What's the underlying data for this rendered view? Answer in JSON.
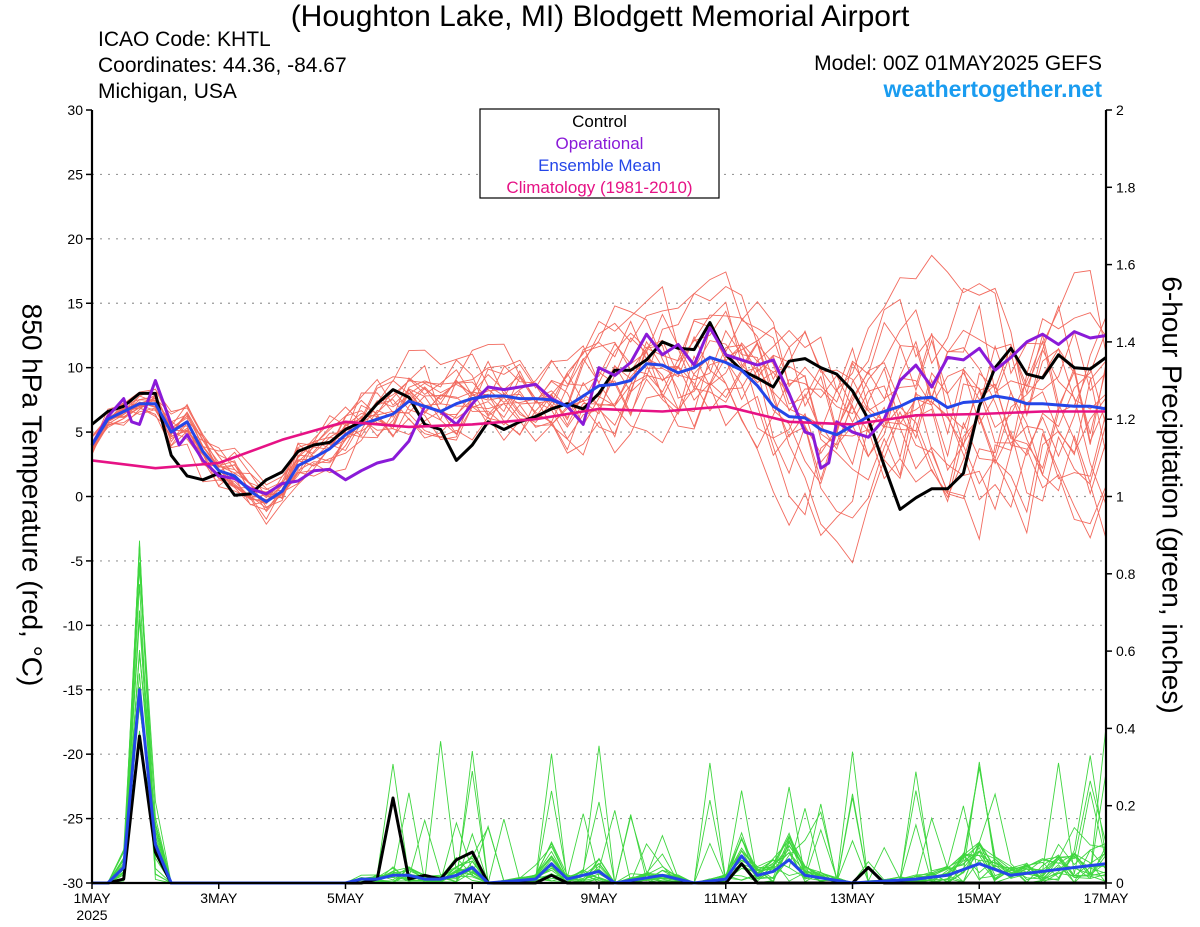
{
  "header": {
    "title": "(Houghton Lake, MI) Blodgett Memorial Airport",
    "icao": "ICAO Code: KHTL",
    "coords": "Coordinates: 44.36, -84.67",
    "region": "Michigan, USA",
    "model": "Model: 00Z 01MAY2025 GEFS",
    "site": "weathertogether.net"
  },
  "colors": {
    "control": "#000000",
    "operational": "#8a1ad8",
    "mean": "#2446e8",
    "climatology": "#e61285",
    "members_temp": "#f26a5e",
    "members_precip": "#3fd63f",
    "grid": "#999999"
  },
  "chart_data": {
    "type": "line",
    "ylabel_left": "850 hPa Temperature (red, °C)",
    "ylabel_right": "6-hour Precipitation (green, inches)",
    "ylim_left": [
      -30,
      30
    ],
    "ylim_right": [
      0,
      2
    ],
    "yticks_left": [
      30,
      25,
      20,
      15,
      10,
      5,
      0,
      -5,
      -10,
      -15,
      -20,
      -25,
      -30
    ],
    "yticks_right": [
      2,
      1.8,
      1.6,
      1.4,
      1.2,
      1,
      0.8,
      0.6,
      0.4,
      0.2,
      0
    ],
    "xlim_days": [
      0,
      16
    ],
    "xticks": [
      {
        "day": 0,
        "label": "1MAY",
        "sub": "2025"
      },
      {
        "day": 2,
        "label": "3MAY"
      },
      {
        "day": 4,
        "label": "5MAY"
      },
      {
        "day": 6,
        "label": "7MAY"
      },
      {
        "day": 8,
        "label": "9MAY"
      },
      {
        "day": 10,
        "label": "11MAY"
      },
      {
        "day": 12,
        "label": "13MAY"
      },
      {
        "day": 14,
        "label": "15MAY"
      },
      {
        "day": 16,
        "label": "17MAY"
      }
    ],
    "grid": true,
    "legend_placement": "top-center",
    "legend": [
      "Control",
      "Operational",
      "Ensemble Mean",
      "Climatology (1981-2010)"
    ],
    "temperature_series": [
      {
        "name": "Control",
        "key": "control",
        "points": [
          [
            0,
            5.6
          ],
          [
            0.25,
            6.6
          ],
          [
            0.5,
            7
          ],
          [
            0.75,
            8
          ],
          [
            1,
            8
          ],
          [
            1.125,
            5.5
          ],
          [
            1.25,
            3.2
          ],
          [
            1.5,
            1.6
          ],
          [
            1.75,
            1.3
          ],
          [
            2,
            1.8
          ],
          [
            2.25,
            0.1
          ],
          [
            2.5,
            0.2
          ],
          [
            2.75,
            1.3
          ],
          [
            3,
            1.9
          ],
          [
            3.25,
            3.5
          ],
          [
            3.5,
            4
          ],
          [
            3.75,
            4.2
          ],
          [
            4,
            5.2
          ],
          [
            4.25,
            5.8
          ],
          [
            4.5,
            7.2
          ],
          [
            4.75,
            8.3
          ],
          [
            5,
            7.7
          ],
          [
            5.25,
            5.6
          ],
          [
            5.5,
            5.2
          ],
          [
            5.75,
            2.8
          ],
          [
            6,
            4
          ],
          [
            6.25,
            5.8
          ],
          [
            6.5,
            5.2
          ],
          [
            6.75,
            5.8
          ],
          [
            7,
            6.2
          ],
          [
            7.25,
            6.8
          ],
          [
            7.5,
            7.2
          ],
          [
            7.75,
            6.8
          ],
          [
            8,
            8
          ],
          [
            8.25,
            9.8
          ],
          [
            8.5,
            9.8
          ],
          [
            8.75,
            10.6
          ],
          [
            9,
            12
          ],
          [
            9.25,
            11.5
          ],
          [
            9.5,
            11.4
          ],
          [
            9.75,
            13.5
          ],
          [
            10,
            11
          ],
          [
            10.25,
            9.8
          ],
          [
            10.5,
            9.2
          ],
          [
            10.75,
            8.5
          ],
          [
            11,
            10.5
          ],
          [
            11.25,
            10.7
          ],
          [
            11.5,
            10
          ],
          [
            11.75,
            9.5
          ],
          [
            12,
            8.2
          ],
          [
            12.25,
            6
          ],
          [
            12.5,
            2.4
          ],
          [
            12.75,
            -1
          ],
          [
            13,
            -0.1
          ],
          [
            13.25,
            0.6
          ],
          [
            13.5,
            0.6
          ],
          [
            13.75,
            1.8
          ],
          [
            14,
            7
          ],
          [
            14.25,
            10
          ],
          [
            14.5,
            11.5
          ],
          [
            14.75,
            9.5
          ],
          [
            15,
            9.2
          ],
          [
            15.25,
            11
          ],
          [
            15.5,
            10
          ],
          [
            15.75,
            9.9
          ],
          [
            16,
            10.8
          ]
        ]
      },
      {
        "name": "Operational",
        "key": "operational",
        "points": [
          [
            0,
            4
          ],
          [
            0.25,
            6.2
          ],
          [
            0.5,
            7.6
          ],
          [
            0.625,
            5.8
          ],
          [
            0.75,
            5.6
          ],
          [
            1,
            9
          ],
          [
            1.25,
            5.6
          ],
          [
            1.375,
            4
          ],
          [
            1.5,
            4.8
          ],
          [
            1.75,
            2.8
          ],
          [
            2,
            1.6
          ],
          [
            2.25,
            1.4
          ],
          [
            2.5,
            0.6
          ],
          [
            2.75,
            0.2
          ],
          [
            3,
            1
          ],
          [
            3.25,
            1.2
          ],
          [
            3.5,
            2
          ],
          [
            3.75,
            2.1
          ],
          [
            4,
            1.3
          ],
          [
            4.25,
            2
          ],
          [
            4.5,
            2.6
          ],
          [
            4.75,
            2.9
          ],
          [
            5,
            4.3
          ],
          [
            5.25,
            7
          ],
          [
            5.5,
            6.6
          ],
          [
            5.75,
            5.6
          ],
          [
            6,
            7.2
          ],
          [
            6.25,
            8.5
          ],
          [
            6.5,
            8.3
          ],
          [
            6.75,
            8.5
          ],
          [
            7,
            8.7
          ],
          [
            7.25,
            7.6
          ],
          [
            7.5,
            7
          ],
          [
            7.75,
            5.6
          ],
          [
            8,
            10
          ],
          [
            8.25,
            9.4
          ],
          [
            8.5,
            10.4
          ],
          [
            8.75,
            12.6
          ],
          [
            9,
            11
          ],
          [
            9.25,
            11.8
          ],
          [
            9.5,
            10.2
          ],
          [
            9.75,
            13.1
          ],
          [
            10,
            11
          ],
          [
            10.25,
            10.6
          ],
          [
            10.5,
            10.2
          ],
          [
            10.75,
            10.6
          ],
          [
            11,
            8
          ],
          [
            11.25,
            5
          ],
          [
            11.375,
            4.8
          ],
          [
            11.5,
            2.2
          ],
          [
            11.625,
            2.6
          ],
          [
            11.75,
            5.8
          ],
          [
            12,
            5
          ],
          [
            12.25,
            4.6
          ],
          [
            12.5,
            6
          ],
          [
            12.75,
            9
          ],
          [
            13,
            10.2
          ],
          [
            13.25,
            8.5
          ],
          [
            13.5,
            10.8
          ],
          [
            13.75,
            10.6
          ],
          [
            14,
            11.5
          ],
          [
            14.25,
            9.8
          ],
          [
            14.5,
            10.8
          ],
          [
            14.75,
            12
          ],
          [
            15,
            12.6
          ],
          [
            15.25,
            11.8
          ],
          [
            15.5,
            12.8
          ],
          [
            15.75,
            12.3
          ],
          [
            16,
            12.5
          ]
        ]
      },
      {
        "name": "Ensemble Mean",
        "key": "mean",
        "points": [
          [
            0,
            4
          ],
          [
            0.25,
            6
          ],
          [
            0.5,
            6.6
          ],
          [
            0.75,
            7.2
          ],
          [
            1,
            7.2
          ],
          [
            1.25,
            5
          ],
          [
            1.5,
            5.8
          ],
          [
            1.75,
            3.5
          ],
          [
            2,
            2
          ],
          [
            2.25,
            1.6
          ],
          [
            2.5,
            0.4
          ],
          [
            2.75,
            -0.4
          ],
          [
            3,
            0.4
          ],
          [
            3.25,
            2.4
          ],
          [
            3.5,
            3
          ],
          [
            3.75,
            3.7
          ],
          [
            4,
            4.8
          ],
          [
            4.25,
            5.6
          ],
          [
            4.5,
            6
          ],
          [
            4.75,
            6.4
          ],
          [
            5,
            7.4
          ],
          [
            5.25,
            7
          ],
          [
            5.5,
            6.6
          ],
          [
            5.75,
            7.2
          ],
          [
            6,
            7.6
          ],
          [
            6.25,
            7.8
          ],
          [
            6.5,
            7.8
          ],
          [
            6.75,
            7.6
          ],
          [
            7,
            7.6
          ],
          [
            7.25,
            7.5
          ],
          [
            7.5,
            7
          ],
          [
            7.75,
            7.8
          ],
          [
            8,
            8.6
          ],
          [
            8.25,
            8.7
          ],
          [
            8.5,
            9
          ],
          [
            8.75,
            10.3
          ],
          [
            9,
            10.2
          ],
          [
            9.25,
            9.6
          ],
          [
            9.5,
            10
          ],
          [
            9.75,
            10.8
          ],
          [
            10,
            10.4
          ],
          [
            10.25,
            9.8
          ],
          [
            10.5,
            8.6
          ],
          [
            10.75,
            7
          ],
          [
            11,
            6.2
          ],
          [
            11.25,
            6.1
          ],
          [
            11.5,
            5.2
          ],
          [
            11.75,
            4.8
          ],
          [
            12,
            5.5
          ],
          [
            12.25,
            6.2
          ],
          [
            12.5,
            6.6
          ],
          [
            12.75,
            7
          ],
          [
            13,
            7.6
          ],
          [
            13.25,
            7.7
          ],
          [
            13.5,
            6.9
          ],
          [
            13.75,
            7.3
          ],
          [
            14,
            7.4
          ],
          [
            14.25,
            7.8
          ],
          [
            14.5,
            7.6
          ],
          [
            14.75,
            7.2
          ],
          [
            15,
            7.2
          ],
          [
            15.25,
            7.1
          ],
          [
            15.5,
            7
          ],
          [
            15.75,
            7
          ],
          [
            16,
            6.8
          ]
        ]
      },
      {
        "name": "Climatology (1981-2010)",
        "key": "climatology",
        "points": [
          [
            0,
            2.8
          ],
          [
            1,
            2.2
          ],
          [
            2,
            2.6
          ],
          [
            3,
            4.4
          ],
          [
            4,
            5.8
          ],
          [
            5,
            5.4
          ],
          [
            6,
            5.6
          ],
          [
            7,
            6
          ],
          [
            8,
            6.8
          ],
          [
            9,
            6.6
          ],
          [
            10,
            7
          ],
          [
            11,
            5.8
          ],
          [
            12,
            5.6
          ],
          [
            13,
            6.3
          ],
          [
            14,
            6.4
          ],
          [
            15,
            6.6
          ],
          [
            16,
            6.6
          ]
        ]
      }
    ],
    "precipitation_series": [
      {
        "name": "Control",
        "key": "control",
        "points": [
          [
            0,
            0
          ],
          [
            0.25,
            0
          ],
          [
            0.5,
            0.01
          ],
          [
            0.75,
            0.38
          ],
          [
            1,
            0.08
          ],
          [
            1.25,
            0
          ],
          [
            2,
            0
          ],
          [
            4,
            0
          ],
          [
            4.25,
            0
          ],
          [
            4.5,
            0.01
          ],
          [
            4.75,
            0.22
          ],
          [
            5,
            0.01
          ],
          [
            5.25,
            0.02
          ],
          [
            5.5,
            0.01
          ],
          [
            5.75,
            0.06
          ],
          [
            6,
            0.08
          ],
          [
            6.25,
            0
          ],
          [
            7,
            0
          ],
          [
            7.25,
            0.02
          ],
          [
            7.5,
            0
          ],
          [
            10,
            0
          ],
          [
            10.25,
            0.05
          ],
          [
            10.5,
            0
          ],
          [
            12,
            0
          ],
          [
            12.25,
            0.04
          ],
          [
            12.5,
            0
          ],
          [
            16,
            0
          ]
        ]
      },
      {
        "name": "Ensemble Mean",
        "key": "mean",
        "points": [
          [
            0,
            0
          ],
          [
            0.25,
            0
          ],
          [
            0.5,
            0.04
          ],
          [
            0.75,
            0.5
          ],
          [
            1,
            0.1
          ],
          [
            1.25,
            0
          ],
          [
            2,
            0
          ],
          [
            4,
            0
          ],
          [
            4.25,
            0.01
          ],
          [
            4.5,
            0.01
          ],
          [
            4.75,
            0.02
          ],
          [
            5,
            0.02
          ],
          [
            5.25,
            0.01
          ],
          [
            5.5,
            0.01
          ],
          [
            5.75,
            0.02
          ],
          [
            6,
            0.04
          ],
          [
            6.25,
            0
          ],
          [
            7,
            0.01
          ],
          [
            7.25,
            0.05
          ],
          [
            7.5,
            0.01
          ],
          [
            8,
            0.03
          ],
          [
            8.25,
            0
          ],
          [
            9,
            0.02
          ],
          [
            9.5,
            0
          ],
          [
            10,
            0.01
          ],
          [
            10.25,
            0.07
          ],
          [
            10.5,
            0.02
          ],
          [
            10.75,
            0.03
          ],
          [
            11,
            0.06
          ],
          [
            11.25,
            0.02
          ],
          [
            12,
            0
          ],
          [
            13,
            0.01
          ],
          [
            13.5,
            0.02
          ],
          [
            14,
            0.05
          ],
          [
            14.5,
            0.02
          ],
          [
            15,
            0.03
          ],
          [
            15.5,
            0.04
          ],
          [
            16,
            0.05
          ]
        ]
      }
    ]
  }
}
